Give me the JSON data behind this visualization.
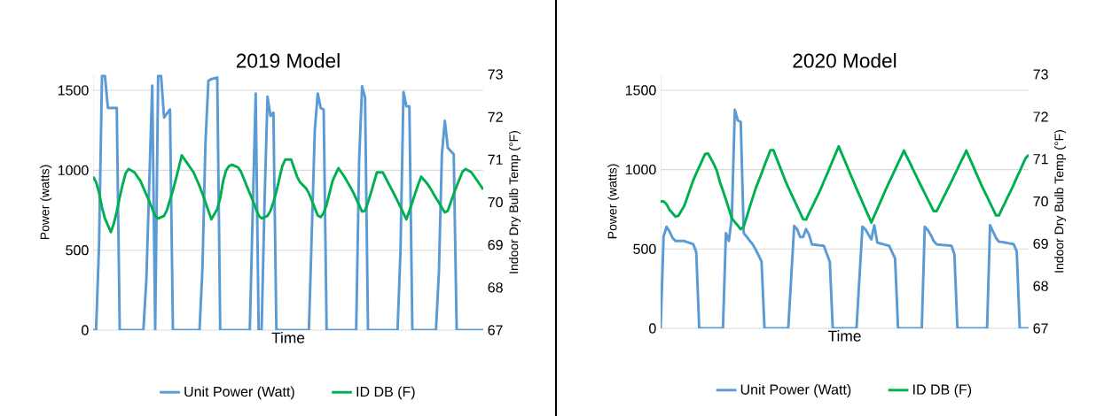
{
  "chart_data": [
    {
      "type": "line",
      "title": "2019 Model",
      "xlabel": "Time",
      "ylabel": "Power (watts)",
      "y2label": "Indoor Dry Bulb Temp (°F)",
      "categories": [
        null,
        null,
        null,
        null,
        null,
        null,
        null,
        null,
        null,
        null,
        null,
        null,
        null,
        null,
        null,
        null,
        null,
        null,
        null,
        null,
        null,
        null,
        null,
        null,
        null,
        null,
        null,
        null,
        null,
        null,
        null,
        null,
        null,
        null,
        null,
        null,
        null,
        null,
        null,
        null,
        null,
        null,
        null,
        null,
        null,
        null,
        null,
        null,
        null,
        null,
        null,
        null,
        null,
        null,
        null,
        null,
        null,
        null,
        null,
        null,
        null,
        null,
        null,
        null,
        null,
        null,
        null,
        null,
        null,
        null,
        null,
        null,
        null,
        null,
        null,
        null,
        null,
        null,
        null,
        null,
        null,
        null,
        null,
        null,
        null,
        null,
        null,
        null,
        null,
        null,
        null,
        null,
        null,
        null,
        null,
        null,
        null,
        null,
        null,
        null,
        null,
        null,
        null,
        null,
        null,
        null,
        null,
        null,
        null,
        null,
        null,
        null,
        null,
        null,
        null,
        null,
        null,
        null,
        null,
        null,
        null,
        null,
        null,
        null,
        null,
        null,
        null,
        null,
        null,
        null,
        null,
        null,
        null
      ],
      "ylim": [
        0,
        1600
      ],
      "yticks": [
        0,
        500,
        1000,
        1500
      ],
      "y2lim": [
        67,
        73
      ],
      "y2ticks": [
        67,
        68,
        69,
        70,
        71,
        72,
        73
      ],
      "grid": "y",
      "legend": "bottom",
      "series": [
        {
          "name": "Unit Power (Watt)",
          "color": "#5b9bd5",
          "values": [
            0,
            0,
            530,
            1590,
            1590,
            1390,
            1390,
            1390,
            1390,
            0,
            0,
            0,
            0,
            0,
            0,
            0,
            0,
            0,
            310,
            920,
            1530,
            0,
            1590,
            1590,
            1330,
            1355,
            1380,
            0,
            0,
            0,
            0,
            0,
            0,
            0,
            0,
            0,
            0,
            390,
            1170,
            1560,
            1570,
            1575,
            1580,
            0,
            0,
            0,
            0,
            0,
            0,
            0,
            0,
            0,
            0,
            0,
            740,
            1480,
            0,
            0,
            800,
            1460,
            1340,
            1360,
            0,
            0,
            0,
            0,
            0,
            0,
            0,
            0,
            0,
            0,
            0,
            0,
            620,
            1250,
            1480,
            1390,
            1380,
            0,
            0,
            0,
            0,
            0,
            0,
            0,
            0,
            0,
            0,
            0,
            1060,
            1525,
            1455,
            0,
            0,
            0,
            0,
            0,
            0,
            0,
            0,
            0,
            0,
            0,
            500,
            1490,
            1400,
            1400,
            0,
            0,
            0,
            0,
            0,
            0,
            0,
            0,
            0,
            370,
            1100,
            1310,
            1140,
            1120,
            1100,
            0,
            0,
            0,
            0,
            0,
            0,
            0,
            0,
            0,
            0
          ]
        },
        {
          "name": "ID DB (F)",
          "color": "#00b050",
          "axis": "y2",
          "values": [
            70.6,
            70.47,
            70.23,
            69.88,
            69.62,
            69.46,
            69.3,
            69.5,
            69.78,
            70.12,
            70.42,
            70.68,
            70.78,
            70.74,
            70.7,
            70.6,
            70.5,
            70.34,
            70.18,
            70.02,
            69.85,
            69.68,
            69.62,
            69.65,
            69.68,
            69.82,
            70.05,
            70.28,
            70.54,
            70.82,
            71.1,
            71.0,
            70.9,
            70.8,
            70.7,
            70.54,
            70.38,
            70.2,
            70.0,
            69.8,
            69.6,
            69.72,
            69.84,
            70.1,
            70.5,
            70.75,
            70.85,
            70.88,
            70.85,
            70.82,
            70.72,
            70.55,
            70.38,
            70.21,
            70.04,
            69.86,
            69.69,
            69.62,
            69.65,
            69.68,
            69.8,
            70.0,
            70.25,
            70.55,
            70.85,
            71.0,
            71.0,
            71.0,
            70.8,
            70.6,
            70.47,
            70.4,
            70.33,
            70.21,
            70.04,
            69.86,
            69.69,
            69.65,
            69.75,
            69.94,
            70.22,
            70.5,
            70.65,
            70.8,
            70.7,
            70.6,
            70.48,
            70.36,
            70.23,
            70.08,
            69.93,
            69.78,
            69.8,
            70.0,
            70.22,
            70.46,
            70.7,
            70.7,
            70.7,
            70.57,
            70.43,
            70.3,
            70.17,
            70.03,
            69.89,
            69.74,
            69.6,
            69.8,
            70.0,
            70.22,
            70.42,
            70.6,
            70.52,
            70.44,
            70.34,
            70.22,
            70.1,
            69.99,
            69.87,
            69.76,
            69.8,
            70.0,
            70.2,
            70.38,
            70.55,
            70.72,
            70.78,
            70.74,
            70.7,
            70.6,
            70.5,
            70.4,
            70.3
          ]
        }
      ]
    },
    {
      "type": "line",
      "title": "2020 Model",
      "xlabel": "Time",
      "ylabel": "Power (watts)",
      "y2label": "Indoor Dry Bulb Temp (°F)",
      "categories": [
        null,
        null,
        null,
        null,
        null,
        null,
        null,
        null,
        null,
        null,
        null,
        null,
        null,
        null,
        null,
        null,
        null,
        null,
        null,
        null,
        null,
        null,
        null,
        null,
        null,
        null,
        null,
        null,
        null,
        null,
        null,
        null,
        null,
        null,
        null,
        null,
        null,
        null,
        null,
        null,
        null,
        null,
        null,
        null,
        null,
        null,
        null,
        null,
        null,
        null,
        null,
        null,
        null,
        null,
        null,
        null,
        null,
        null,
        null,
        null,
        null,
        null,
        null,
        null,
        null,
        null,
        null,
        null,
        null,
        null,
        null,
        null,
        null,
        null,
        null,
        null,
        null,
        null,
        null,
        null,
        null,
        null,
        null,
        null,
        null,
        null,
        null,
        null,
        null,
        null,
        null,
        null,
        null,
        null,
        null,
        null,
        null,
        null,
        null,
        null,
        null,
        null,
        null,
        null,
        null,
        null,
        null,
        null,
        null,
        null,
        null,
        null,
        null,
        null,
        null,
        null,
        null,
        null,
        null,
        null,
        null,
        null,
        null,
        null,
        null
      ],
      "ylim": [
        0,
        1600
      ],
      "yticks": [
        0,
        500,
        1000,
        1500
      ],
      "y2lim": [
        67,
        73
      ],
      "y2ticks": [
        67,
        68,
        69,
        70,
        71,
        72,
        73
      ],
      "grid": "y",
      "legend": "bottom",
      "series": [
        {
          "name": "Unit Power (Watt)",
          "color": "#5b9bd5",
          "values": [
            0,
            580,
            640,
            610,
            570,
            550,
            550,
            550,
            550,
            543,
            537,
            530,
            480,
            0,
            0,
            0,
            0,
            0,
            0,
            0,
            0,
            0,
            600,
            550,
            705,
            1377,
            1310,
            1300,
            600,
            577,
            553,
            530,
            497,
            460,
            420,
            0,
            0,
            0,
            0,
            0,
            0,
            0,
            0,
            0,
            320,
            645,
            625,
            575,
            575,
            625,
            590,
            529,
            527,
            524,
            522,
            520,
            470,
            420,
            0,
            0,
            0,
            0,
            0,
            0,
            0,
            0,
            0,
            320,
            640,
            624,
            592,
            560,
            650,
            540,
            535,
            530,
            525,
            520,
            480,
            440,
            0,
            0,
            0,
            0,
            0,
            0,
            0,
            0,
            0,
            640,
            620,
            590,
            550,
            529,
            527,
            525,
            524,
            522,
            520,
            467,
            0,
            0,
            0,
            0,
            0,
            0,
            0,
            0,
            0,
            0,
            0,
            650,
            610,
            570,
            546,
            544,
            541,
            537,
            534,
            530,
            483,
            0,
            0,
            0,
            0
          ]
        },
        {
          "name": "ID DB (F)",
          "color": "#00b050",
          "axis": "y2",
          "values": [
            70,
            70,
            69.93,
            69.8,
            69.72,
            69.64,
            69.66,
            69.78,
            69.9,
            70.1,
            70.3,
            70.5,
            70.66,
            70.81,
            70.97,
            71.12,
            71.13,
            71,
            70.87,
            70.71,
            70.45,
            70.25,
            70.04,
            69.82,
            69.6,
            69.51,
            69.43,
            69.34,
            69.41,
            69.63,
            69.86,
            70.08,
            70.3,
            70.48,
            70.66,
            70.85,
            71.03,
            71.21,
            71.21,
            71.03,
            70.85,
            70.67,
            70.49,
            70.33,
            70.18,
            70.03,
            69.88,
            69.73,
            69.58,
            69.57,
            69.72,
            69.86,
            70.01,
            70.15,
            70.3,
            70.47,
            70.63,
            70.8,
            70.97,
            71.13,
            71.3,
            71.13,
            70.97,
            70.8,
            70.63,
            70.47,
            70.3,
            70.14,
            69.98,
            69.82,
            69.66,
            69.5,
            69.66,
            69.82,
            69.98,
            70.14,
            70.3,
            70.45,
            70.6,
            70.75,
            70.9,
            71.05,
            71.2,
            71.05,
            70.91,
            70.76,
            70.62,
            70.47,
            70.33,
            70.19,
            70.05,
            69.91,
            69.77,
            69.77,
            69.91,
            70.05,
            70.19,
            70.33,
            70.47,
            70.62,
            70.76,
            70.91,
            71.05,
            71.2,
            71.04,
            70.88,
            70.72,
            70.56,
            70.4,
            70.25,
            70.11,
            69.96,
            69.82,
            69.67,
            69.67,
            69.82,
            69.96,
            70.11,
            70.25,
            70.4,
            70.56,
            70.71,
            70.87,
            71.02,
            71.1
          ]
        }
      ]
    }
  ]
}
